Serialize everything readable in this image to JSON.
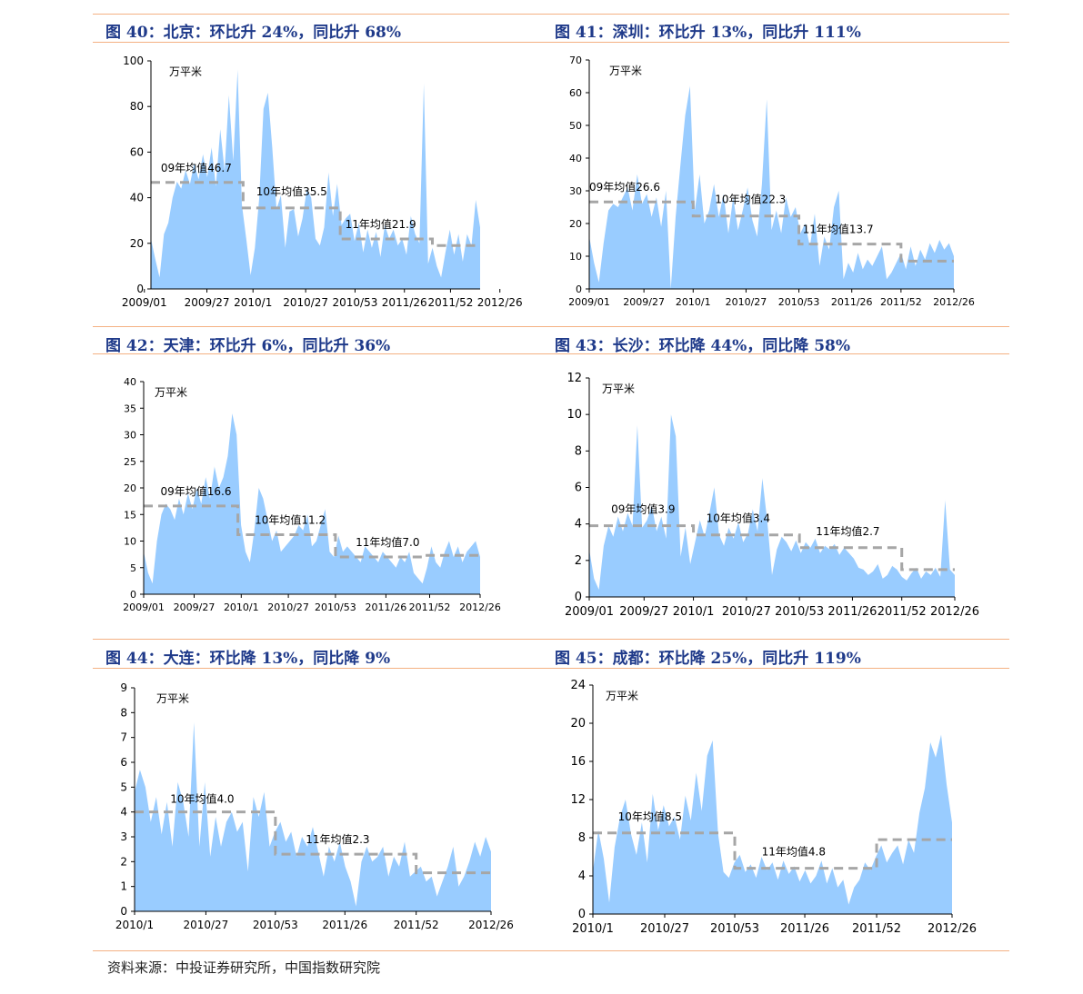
{
  "source_note": "资料来源：中投证券研究所，中国指数研究院",
  "colors": {
    "area": "#99ccff",
    "avg_line": "#a6a6a6",
    "axis": "#000000",
    "title": "#1f3a8a",
    "rule": "#f4b183"
  },
  "chart_data": [
    {
      "type": "area",
      "title": "图 40：北京：环比升 24%，同比升 68%",
      "ylabel": "万平米",
      "ylim": [
        0,
        100
      ],
      "yticks": [
        "0",
        "20",
        "40",
        "60",
        "80",
        "100"
      ],
      "xticks": [
        "2009/01",
        "2009/27",
        "2010/1",
        "2010/27",
        "2010/53",
        "2011/26",
        "2011/52",
        "2012/26"
      ],
      "series": [
        {
          "values": [
            22,
            13,
            5,
            24,
            29,
            40,
            47,
            44,
            52,
            46,
            55,
            48,
            59,
            49,
            62,
            45,
            70,
            52,
            85,
            56,
            96,
            37,
            22,
            6,
            18,
            40,
            79,
            86,
            62,
            35,
            41,
            18,
            34,
            35,
            23,
            31,
            44,
            40,
            22,
            19,
            27,
            51,
            32,
            46,
            28,
            31,
            33,
            21,
            29,
            16,
            26,
            18,
            25,
            14,
            28,
            22,
            26,
            19,
            22,
            15,
            32,
            24,
            20,
            90,
            11,
            18,
            10,
            5,
            16,
            26,
            15,
            24,
            12,
            24,
            19,
            39,
            27
          ]
        }
      ],
      "averages": [
        {
          "label": "09年均值46.7",
          "value": 46.7
        },
        {
          "label": "10年均值35.5",
          "value": 35.5
        },
        {
          "label": "11年均值21.9",
          "value": 21.9
        },
        {
          "value": 19.0
        }
      ]
    },
    {
      "type": "area",
      "title": "图 41：深圳：环比升 13%，同比升 111%",
      "ylabel": "万平米",
      "ylim": [
        0,
        70
      ],
      "yticks": [
        "0",
        "10",
        "20",
        "30",
        "40",
        "50",
        "60",
        "70"
      ],
      "xticks": [
        "2009/01",
        "2009/27",
        "2010/1",
        "2010/27",
        "2010/53",
        "2011/26",
        "2011/52",
        "2012/26"
      ],
      "series": [
        {
          "values": [
            16,
            8,
            2,
            14,
            24,
            26,
            25,
            28,
            31,
            24,
            35,
            26,
            29,
            22,
            28,
            19,
            30,
            0,
            22,
            38,
            53,
            62,
            24,
            35,
            20,
            24,
            32,
            22,
            29,
            17,
            28,
            18,
            24,
            31,
            21,
            16,
            32,
            58,
            18,
            24,
            17,
            28,
            22,
            25,
            17,
            20,
            13,
            23,
            7,
            16,
            12,
            25,
            30,
            3,
            8,
            5,
            11,
            6,
            9,
            7,
            10,
            13,
            3,
            5,
            8,
            11,
            6,
            13,
            7,
            12,
            9,
            14,
            11,
            15,
            12,
            14,
            10
          ]
        }
      ],
      "averages": [
        {
          "label": "09年均值26.6",
          "value": 26.6
        },
        {
          "label": "10年均值22.3",
          "value": 22.3
        },
        {
          "label": "11年均值13.7",
          "value": 13.7
        },
        {
          "value": 8.5
        }
      ]
    },
    {
      "type": "area",
      "title": "图 42：天津：环比升 6%，同比升 36%",
      "ylabel": "万平米",
      "ylim": [
        0,
        40
      ],
      "yticks": [
        "0",
        "5",
        "10",
        "15",
        "20",
        "25",
        "30",
        "35",
        "40"
      ],
      "xticks": [
        "2009/01",
        "2009/27",
        "2010/1",
        "2010/27",
        "2010/53",
        "2011/26",
        "2011/52",
        "2012/26"
      ],
      "series": [
        {
          "values": [
            8,
            4,
            2,
            10,
            15,
            17,
            16,
            14,
            18,
            15,
            19,
            16,
            20,
            17,
            22,
            18,
            24,
            20,
            22,
            26,
            34,
            30,
            13,
            8,
            6,
            12,
            20,
            18,
            14,
            10,
            12,
            8,
            9,
            10,
            11,
            13,
            12,
            15,
            9,
            10,
            13,
            16,
            8,
            7,
            11,
            8,
            9,
            8,
            7,
            6,
            9,
            8,
            7,
            6,
            8,
            7,
            6,
            5,
            7,
            6,
            8,
            4,
            3,
            2,
            5,
            9,
            6,
            5,
            8,
            10,
            7,
            9,
            6,
            8,
            9,
            10,
            7
          ]
        }
      ],
      "averages": [
        {
          "label": "09年均值16.6",
          "value": 16.6
        },
        {
          "label": "10年均值11.2",
          "value": 11.2
        },
        {
          "label": "11年均值7.0",
          "value": 7.0
        },
        {
          "value": 7.3
        }
      ]
    },
    {
      "type": "area",
      "title": "图 43：长沙：环比降 44%，同比降 58%",
      "ylim": [
        0,
        12
      ],
      "yticks": [
        "0",
        "2",
        "4",
        "6",
        "8",
        "10",
        "12"
      ],
      "ylabel": "万平米",
      "xticks": [
        "2009/01",
        "2009/27",
        "2010/1",
        "2010/27",
        "2010/53",
        "2011/26",
        "2011/52",
        "2012/26"
      ],
      "series": [
        {
          "values": [
            2.6,
            1.0,
            0.4,
            2.8,
            3.9,
            3.3,
            4.4,
            3.6,
            4.6,
            3.9,
            9.4,
            3.8,
            4.2,
            5.0,
            3.6,
            4.4,
            3.2,
            10.0,
            8.8,
            2.2,
            3.8,
            1.8,
            3.0,
            4.2,
            3.3,
            4.6,
            6.0,
            3.4,
            2.8,
            3.8,
            3.2,
            4.1,
            3.0,
            3.5,
            4.8,
            3.6,
            6.5,
            4.2,
            1.2,
            2.6,
            3.3,
            3.0,
            2.5,
            3.1,
            2.4,
            3.0,
            2.7,
            3.2,
            2.4,
            2.8,
            2.6,
            2.9,
            2.3,
            2.7,
            2.4,
            2.1,
            1.6,
            1.5,
            1.2,
            1.4,
            1.8,
            1.0,
            1.2,
            1.7,
            1.5,
            1.1,
            0.9,
            1.3,
            1.6,
            1.0,
            1.4,
            1.2,
            1.6,
            1.1,
            5.3,
            1.5,
            1.2
          ]
        }
      ],
      "averages": [
        {
          "label": "09年均值3.9",
          "value": 3.9
        },
        {
          "label": "10年均值3.4",
          "value": 3.4
        },
        {
          "label": "11年均值2.7",
          "value": 2.7
        },
        {
          "value": 1.5
        }
      ]
    },
    {
      "type": "area",
      "title": "图 44：大连：环比降 13%，同比降 9%",
      "ylabel": "万平米",
      "ylim": [
        0,
        9
      ],
      "yticks": [
        "0",
        "1",
        "2",
        "3",
        "4",
        "5",
        "6",
        "7",
        "8",
        "9"
      ],
      "xticks": [
        "2010/1",
        "2010/27",
        "2010/53",
        "2011/26",
        "2011/52",
        "2012/26"
      ],
      "series": [
        {
          "values": [
            4.8,
            5.7,
            5.0,
            3.6,
            4.6,
            3.1,
            4.4,
            2.6,
            5.2,
            4.4,
            3.0,
            7.6,
            2.6,
            5.2,
            2.2,
            3.8,
            2.6,
            3.6,
            4.0,
            3.2,
            3.6,
            1.6,
            4.6,
            3.8,
            4.8,
            2.6,
            3.2,
            3.6,
            2.8,
            3.2,
            2.2,
            3.0,
            2.6,
            3.4,
            2.4,
            1.4,
            2.6,
            2.0,
            2.8,
            1.8,
            1.2,
            0.2,
            2.0,
            2.6,
            2.0,
            2.2,
            2.6,
            1.4,
            2.2,
            1.8,
            2.8,
            1.4,
            1.6,
            1.8,
            1.2,
            1.4,
            0.6,
            1.2,
            1.8,
            2.6,
            1.0,
            1.4,
            2.0,
            2.8,
            2.2,
            3.0,
            2.4
          ]
        }
      ],
      "averages": [
        {
          "label": "10年均值4.0",
          "value": 4.0
        },
        {
          "label": "11年均值2.3",
          "value": 2.3
        },
        {
          "value": 1.55
        }
      ]
    },
    {
      "type": "area",
      "title": "图 45：成都：环比降 25%，同比升 119%",
      "ylabel": "万平米",
      "ylim": [
        0,
        24
      ],
      "yticks": [
        "0",
        "4",
        "8",
        "12",
        "16",
        "20",
        "24"
      ],
      "xticks": [
        "2010/1",
        "2010/27",
        "2010/53",
        "2011/26",
        "2011/52",
        "2012/26"
      ],
      "series": [
        {
          "values": [
            4.5,
            8.8,
            5.8,
            1.2,
            7.0,
            10.2,
            12.0,
            8.4,
            6.2,
            9.6,
            5.4,
            12.6,
            8.8,
            11.4,
            9.2,
            10.2,
            7.8,
            12.4,
            9.8,
            14.8,
            10.8,
            16.6,
            18.2,
            8.4,
            4.4,
            3.8,
            5.4,
            6.2,
            4.4,
            5.2,
            3.8,
            6.0,
            4.6,
            5.4,
            3.6,
            5.6,
            4.2,
            5.0,
            3.4,
            4.6,
            3.2,
            4.0,
            5.6,
            3.2,
            4.8,
            2.8,
            3.6,
            1.0,
            2.8,
            3.6,
            5.4,
            4.6,
            6.0,
            7.2,
            5.4,
            6.4,
            7.2,
            5.2,
            7.8,
            6.4,
            10.6,
            13.2,
            18.0,
            16.4,
            18.8,
            13.6,
            9.6
          ]
        }
      ],
      "averages": [
        {
          "label": "10年均值8.5",
          "value": 8.5
        },
        {
          "label": "11年均值4.8",
          "value": 4.8
        },
        {
          "value": 7.8
        }
      ]
    }
  ]
}
